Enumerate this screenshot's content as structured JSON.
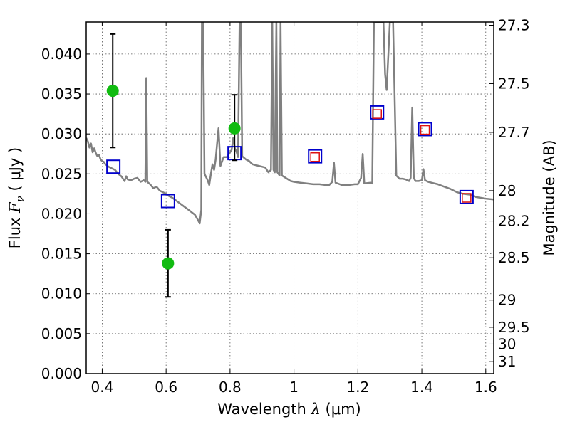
{
  "chart_data": {
    "type": "scatter",
    "xlabel": {
      "prefix": "Wavelength",
      "symbol": "λ",
      "unit": "(μm)"
    },
    "ylabel": {
      "prefix": "Flux",
      "symbol": "F",
      "subscript": "ν",
      "unit": "( μJy )"
    },
    "y2label": "Magnitude (AB)",
    "xlim": [
      0.35,
      1.625
    ],
    "ylim": [
      0.0,
      0.044
    ],
    "grid": true,
    "x_ticks": [
      {
        "v": 0.4,
        "label": "0.4"
      },
      {
        "v": 0.6,
        "label": "0.6"
      },
      {
        "v": 0.8,
        "label": "0.8"
      },
      {
        "v": 1.0,
        "label": "1"
      },
      {
        "v": 1.2,
        "label": "1.2"
      },
      {
        "v": 1.4,
        "label": "1.4"
      },
      {
        "v": 1.6,
        "label": "1.6"
      }
    ],
    "y_ticks": [
      {
        "v": 0.0,
        "label": "0.000"
      },
      {
        "v": 0.005,
        "label": "0.005"
      },
      {
        "v": 0.01,
        "label": "0.010"
      },
      {
        "v": 0.015,
        "label": "0.015"
      },
      {
        "v": 0.02,
        "label": "0.020"
      },
      {
        "v": 0.025,
        "label": "0.025"
      },
      {
        "v": 0.03,
        "label": "0.030"
      },
      {
        "v": 0.035,
        "label": "0.035"
      },
      {
        "v": 0.04,
        "label": "0.040"
      }
    ],
    "mag_ticks": [
      {
        "flux": 0.0436,
        "label": "27.3"
      },
      {
        "flux": 0.0363,
        "label": "27.5"
      },
      {
        "flux": 0.0302,
        "label": "27.7"
      },
      {
        "flux": 0.0229,
        "label": "28"
      },
      {
        "flux": 0.0191,
        "label": "28.2"
      },
      {
        "flux": 0.0145,
        "label": "28.5"
      },
      {
        "flux": 0.0092,
        "label": "29"
      },
      {
        "flux": 0.0058,
        "label": "29.5"
      },
      {
        "flux": 0.0037,
        "label": "30"
      },
      {
        "flux": 0.0015,
        "label": "31"
      }
    ],
    "series": [
      {
        "kind": "observed",
        "color": "#11bb11",
        "points": [
          {
            "x": 0.433,
            "y": 0.0354,
            "ylo": 0.0283,
            "yhi": 0.0425
          },
          {
            "x": 0.606,
            "y": 0.0138,
            "ylo": 0.0096,
            "yhi": 0.018
          },
          {
            "x": 0.814,
            "y": 0.0307,
            "ylo": 0.0267,
            "yhi": 0.0349
          }
        ]
      },
      {
        "kind": "model_bandflux",
        "color": "#0000cc",
        "points": [
          {
            "x": 0.435,
            "y": 0.0259
          },
          {
            "x": 0.606,
            "y": 0.0216
          },
          {
            "x": 0.814,
            "y": 0.0276
          },
          {
            "x": 1.066,
            "y": 0.0272
          },
          {
            "x": 1.26,
            "y": 0.0327
          },
          {
            "x": 1.41,
            "y": 0.0306
          },
          {
            "x": 1.54,
            "y": 0.0221
          }
        ]
      },
      {
        "kind": "model_bandflux_nir",
        "color": "#dd1111",
        "points": [
          {
            "x": 1.066,
            "y": 0.0271
          },
          {
            "x": 1.26,
            "y": 0.0325
          },
          {
            "x": 1.41,
            "y": 0.0305
          },
          {
            "x": 1.54,
            "y": 0.022
          }
        ]
      },
      {
        "kind": "model_spectrum",
        "color": "#808080",
        "points": [
          [
            0.35,
            0.0295
          ],
          [
            0.355,
            0.0291
          ],
          [
            0.36,
            0.0283
          ],
          [
            0.365,
            0.0288
          ],
          [
            0.37,
            0.0277
          ],
          [
            0.375,
            0.0282
          ],
          [
            0.38,
            0.0276
          ],
          [
            0.385,
            0.0272
          ],
          [
            0.39,
            0.0274
          ],
          [
            0.395,
            0.0268
          ],
          [
            0.4,
            0.0266
          ],
          [
            0.405,
            0.0265
          ],
          [
            0.41,
            0.0262
          ],
          [
            0.42,
            0.0259
          ],
          [
            0.43,
            0.0257
          ],
          [
            0.44,
            0.0255
          ],
          [
            0.45,
            0.025
          ],
          [
            0.46,
            0.0247
          ],
          [
            0.47,
            0.0241
          ],
          [
            0.475,
            0.0247
          ],
          [
            0.48,
            0.0243
          ],
          [
            0.49,
            0.0242
          ],
          [
            0.5,
            0.0244
          ],
          [
            0.51,
            0.0245
          ],
          [
            0.52,
            0.024
          ],
          [
            0.53,
            0.0242
          ],
          [
            0.535,
            0.024
          ],
          [
            0.538,
            0.037
          ],
          [
            0.541,
            0.024
          ],
          [
            0.55,
            0.0237
          ],
          [
            0.56,
            0.0232
          ],
          [
            0.57,
            0.0234
          ],
          [
            0.58,
            0.0229
          ],
          [
            0.59,
            0.0227
          ],
          [
            0.6,
            0.0225
          ],
          [
            0.61,
            0.0222
          ],
          [
            0.62,
            0.022
          ],
          [
            0.63,
            0.0217
          ],
          [
            0.64,
            0.0214
          ],
          [
            0.65,
            0.0211
          ],
          [
            0.66,
            0.0208
          ],
          [
            0.67,
            0.0205
          ],
          [
            0.68,
            0.0202
          ],
          [
            0.69,
            0.0199
          ],
          [
            0.7,
            0.0192
          ],
          [
            0.705,
            0.0188
          ],
          [
            0.71,
            0.0205
          ],
          [
            0.712,
            0.044
          ],
          [
            0.716,
            0.044
          ],
          [
            0.72,
            0.025
          ],
          [
            0.73,
            0.0242
          ],
          [
            0.735,
            0.0236
          ],
          [
            0.74,
            0.025
          ],
          [
            0.745,
            0.0262
          ],
          [
            0.75,
            0.0255
          ],
          [
            0.755,
            0.0268
          ],
          [
            0.76,
            0.029
          ],
          [
            0.764,
            0.0307
          ],
          [
            0.77,
            0.026
          ],
          [
            0.78,
            0.0271
          ],
          [
            0.79,
            0.0271
          ],
          [
            0.8,
            0.0277
          ],
          [
            0.805,
            0.028
          ],
          [
            0.81,
            0.0295
          ],
          [
            0.815,
            0.0282
          ],
          [
            0.82,
            0.0278
          ],
          [
            0.825,
            0.0271
          ],
          [
            0.83,
            0.044
          ],
          [
            0.834,
            0.044
          ],
          [
            0.838,
            0.0272
          ],
          [
            0.85,
            0.0268
          ],
          [
            0.86,
            0.0266
          ],
          [
            0.87,
            0.0262
          ],
          [
            0.88,
            0.0261
          ],
          [
            0.9,
            0.0259
          ],
          [
            0.91,
            0.0258
          ],
          [
            0.92,
            0.0252
          ],
          [
            0.928,
            0.0255
          ],
          [
            0.932,
            0.044
          ],
          [
            0.936,
            0.0255
          ],
          [
            0.94,
            0.0252
          ],
          [
            0.945,
            0.044
          ],
          [
            0.948,
            0.0252
          ],
          [
            0.955,
            0.0248
          ],
          [
            0.958,
            0.044
          ],
          [
            0.962,
            0.0248
          ],
          [
            0.97,
            0.0246
          ],
          [
            0.99,
            0.0241
          ],
          [
            1.0,
            0.024
          ],
          [
            1.02,
            0.0239
          ],
          [
            1.04,
            0.0238
          ],
          [
            1.06,
            0.0237
          ],
          [
            1.08,
            0.0237
          ],
          [
            1.1,
            0.0236
          ],
          [
            1.11,
            0.0236
          ],
          [
            1.12,
            0.024
          ],
          [
            1.125,
            0.0264
          ],
          [
            1.13,
            0.0239
          ],
          [
            1.15,
            0.0236
          ],
          [
            1.17,
            0.0236
          ],
          [
            1.19,
            0.0237
          ],
          [
            1.2,
            0.0237
          ],
          [
            1.21,
            0.0245
          ],
          [
            1.215,
            0.0275
          ],
          [
            1.22,
            0.0238
          ],
          [
            1.24,
            0.0239
          ],
          [
            1.245,
            0.0238
          ],
          [
            1.25,
            0.044
          ],
          [
            1.28,
            0.044
          ],
          [
            1.285,
            0.0375
          ],
          [
            1.29,
            0.0355
          ],
          [
            1.3,
            0.044
          ],
          [
            1.31,
            0.044
          ],
          [
            1.32,
            0.0248
          ],
          [
            1.33,
            0.0244
          ],
          [
            1.34,
            0.0244
          ],
          [
            1.35,
            0.0243
          ],
          [
            1.36,
            0.0241
          ],
          [
            1.365,
            0.0245
          ],
          [
            1.37,
            0.0333
          ],
          [
            1.375,
            0.0245
          ],
          [
            1.38,
            0.0241
          ],
          [
            1.39,
            0.0241
          ],
          [
            1.4,
            0.0242
          ],
          [
            1.405,
            0.0256
          ],
          [
            1.41,
            0.0242
          ],
          [
            1.42,
            0.024
          ],
          [
            1.43,
            0.0239
          ],
          [
            1.45,
            0.0237
          ],
          [
            1.47,
            0.0234
          ],
          [
            1.49,
            0.0231
          ],
          [
            1.51,
            0.0227
          ],
          [
            1.53,
            0.0225
          ],
          [
            1.55,
            0.0224
          ],
          [
            1.57,
            0.0221
          ],
          [
            1.6,
            0.0219
          ],
          [
            1.625,
            0.0218
          ]
        ]
      }
    ]
  }
}
